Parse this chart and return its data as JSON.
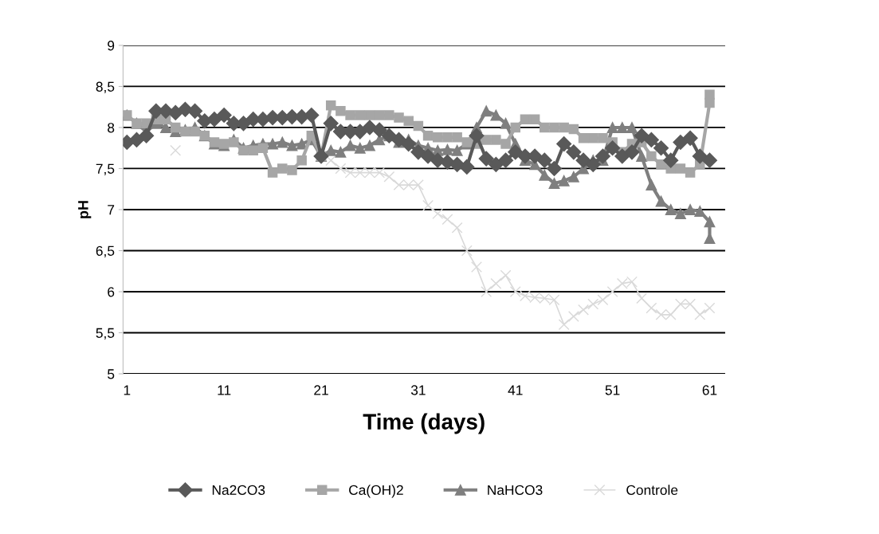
{
  "chart_data": {
    "type": "line",
    "xlabel": "Time (days)",
    "ylabel": "pH",
    "xlim": [
      0.6,
      62.6
    ],
    "xticks": [
      1,
      11,
      21,
      31,
      41,
      51,
      61
    ],
    "ylim": [
      5,
      9
    ],
    "yticks": [
      5,
      {
        "value": 5.5,
        "label": "5,5"
      },
      6,
      {
        "value": 6.5,
        "label": "6,5"
      },
      7,
      {
        "value": 7.5,
        "label": "7,5"
      },
      8,
      {
        "value": 8.5,
        "label": "8,5"
      },
      9
    ],
    "grid": "y",
    "legend": "bottom",
    "series": [
      {
        "name": "Na2CO3",
        "color": "#595959",
        "marker": "diamond",
        "x": [
          1,
          2,
          3,
          4,
          5,
          6,
          7,
          8,
          9,
          10,
          11,
          12,
          13,
          14,
          15,
          16,
          17,
          18,
          19,
          20,
          21,
          22,
          23,
          24,
          25,
          26,
          27,
          28,
          29,
          30,
          31,
          32,
          33,
          34,
          35,
          36,
          37,
          38,
          39,
          40,
          41,
          42,
          43,
          44,
          45,
          46,
          47,
          48,
          49,
          50,
          51,
          52,
          53,
          54,
          55,
          56,
          57,
          58,
          59,
          60,
          61
        ],
        "values": [
          7.82,
          7.85,
          7.9,
          8.2,
          8.2,
          8.18,
          8.22,
          8.2,
          8.08,
          8.1,
          8.15,
          8.05,
          8.05,
          8.1,
          8.1,
          8.12,
          8.12,
          8.13,
          8.13,
          8.15,
          7.65,
          8.05,
          7.95,
          7.95,
          7.95,
          8.0,
          7.97,
          7.9,
          7.85,
          7.8,
          7.7,
          7.65,
          7.6,
          7.58,
          7.55,
          7.52,
          7.9,
          7.62,
          7.55,
          7.6,
          7.7,
          7.65,
          7.65,
          7.6,
          7.5,
          7.8,
          7.7,
          7.6,
          7.55,
          7.65,
          7.75,
          7.65,
          7.7,
          7.9,
          7.85,
          7.75,
          7.6,
          7.82,
          7.87,
          7.65,
          7.6
        ]
      },
      {
        "name": "Ca(OH)2",
        "color": "#a6a6a6",
        "marker": "square",
        "x": [
          1,
          2,
          3,
          4,
          5,
          6,
          7,
          8,
          9,
          10,
          11,
          12,
          13,
          14,
          15,
          16,
          17,
          18,
          19,
          20,
          21,
          22,
          23,
          24,
          25,
          26,
          27,
          28,
          29,
          30,
          31,
          32,
          33,
          34,
          35,
          36,
          37,
          38,
          39,
          40,
          41,
          42,
          43,
          44,
          45,
          46,
          47,
          48,
          49,
          50,
          51,
          52,
          53,
          54,
          55,
          56,
          57,
          58,
          59,
          60,
          61,
          61
        ],
        "values": [
          8.15,
          8.05,
          8.05,
          8.1,
          8.1,
          8.0,
          7.95,
          7.95,
          7.9,
          7.82,
          7.8,
          7.82,
          7.72,
          7.72,
          7.75,
          7.45,
          7.5,
          7.48,
          7.6,
          7.9,
          7.65,
          8.27,
          8.2,
          8.15,
          8.15,
          8.15,
          8.15,
          8.15,
          8.12,
          8.08,
          8.02,
          7.9,
          7.88,
          7.88,
          7.88,
          7.82,
          7.8,
          7.85,
          7.85,
          7.8,
          8.0,
          8.1,
          8.1,
          8.0,
          8.0,
          8.0,
          7.98,
          7.87,
          7.87,
          7.87,
          7.82,
          7.7,
          7.8,
          7.82,
          7.65,
          7.55,
          7.5,
          7.5,
          7.45,
          7.55,
          8.3,
          8.4
        ]
      },
      {
        "name": "NaHCO3",
        "color": "#7f7f7f",
        "marker": "triangle",
        "x": [
          1,
          2,
          3,
          4,
          5,
          6,
          7,
          8,
          9,
          10,
          11,
          12,
          13,
          14,
          15,
          16,
          17,
          18,
          19,
          20,
          21,
          22,
          23,
          24,
          25,
          26,
          27,
          28,
          29,
          30,
          31,
          32,
          33,
          34,
          35,
          36,
          37,
          38,
          39,
          40,
          41,
          42,
          43,
          44,
          45,
          46,
          47,
          48,
          49,
          50,
          51,
          52,
          53,
          54,
          55,
          56,
          57,
          58,
          59,
          60,
          61,
          61
        ],
        "values": [
          8.15,
          8.05,
          7.95,
          8.05,
          8.0,
          7.95,
          7.97,
          8.0,
          7.9,
          7.8,
          7.78,
          7.85,
          7.75,
          7.78,
          7.8,
          7.8,
          7.82,
          7.78,
          7.8,
          7.85,
          7.65,
          7.72,
          7.7,
          7.78,
          7.75,
          7.78,
          7.85,
          7.9,
          7.82,
          7.85,
          7.78,
          7.75,
          7.72,
          7.73,
          7.72,
          7.8,
          8.0,
          8.2,
          8.15,
          8.05,
          7.8,
          7.6,
          7.55,
          7.42,
          7.32,
          7.35,
          7.4,
          7.5,
          7.6,
          7.6,
          8.0,
          8.0,
          8.0,
          7.65,
          7.3,
          7.1,
          7.0,
          6.95,
          7.0,
          6.98,
          6.85,
          6.65
        ]
      },
      {
        "name": "Controle",
        "color": "#d9d9d9",
        "marker": "cross",
        "x": [
          6,
          7,
          8,
          9,
          10,
          11,
          12,
          13,
          14,
          15,
          16,
          17,
          18,
          19,
          20,
          21,
          22,
          23,
          24,
          25,
          26,
          27,
          28,
          29,
          30,
          31,
          32,
          33,
          34,
          35,
          36,
          37,
          38,
          39,
          40,
          41,
          42,
          43,
          44,
          45,
          46,
          47,
          48,
          49,
          50,
          51,
          52,
          53,
          54,
          55,
          56,
          57,
          58,
          59,
          60,
          61
        ],
        "values": [
          7.72,
          null,
          null,
          null,
          null,
          null,
          null,
          null,
          null,
          null,
          null,
          null,
          null,
          null,
          null,
          null,
          7.6,
          7.5,
          7.45,
          7.45,
          7.45,
          7.45,
          7.4,
          7.3,
          7.3,
          7.3,
          7.05,
          6.95,
          6.88,
          6.78,
          6.5,
          6.3,
          6.0,
          6.1,
          6.2,
          6.0,
          5.95,
          5.93,
          5.92,
          5.9,
          5.6,
          5.7,
          5.78,
          5.85,
          5.9,
          6.0,
          6.1,
          6.12,
          5.92,
          5.8,
          5.72,
          5.72,
          5.85,
          5.85,
          5.72,
          5.8
        ]
      }
    ]
  }
}
